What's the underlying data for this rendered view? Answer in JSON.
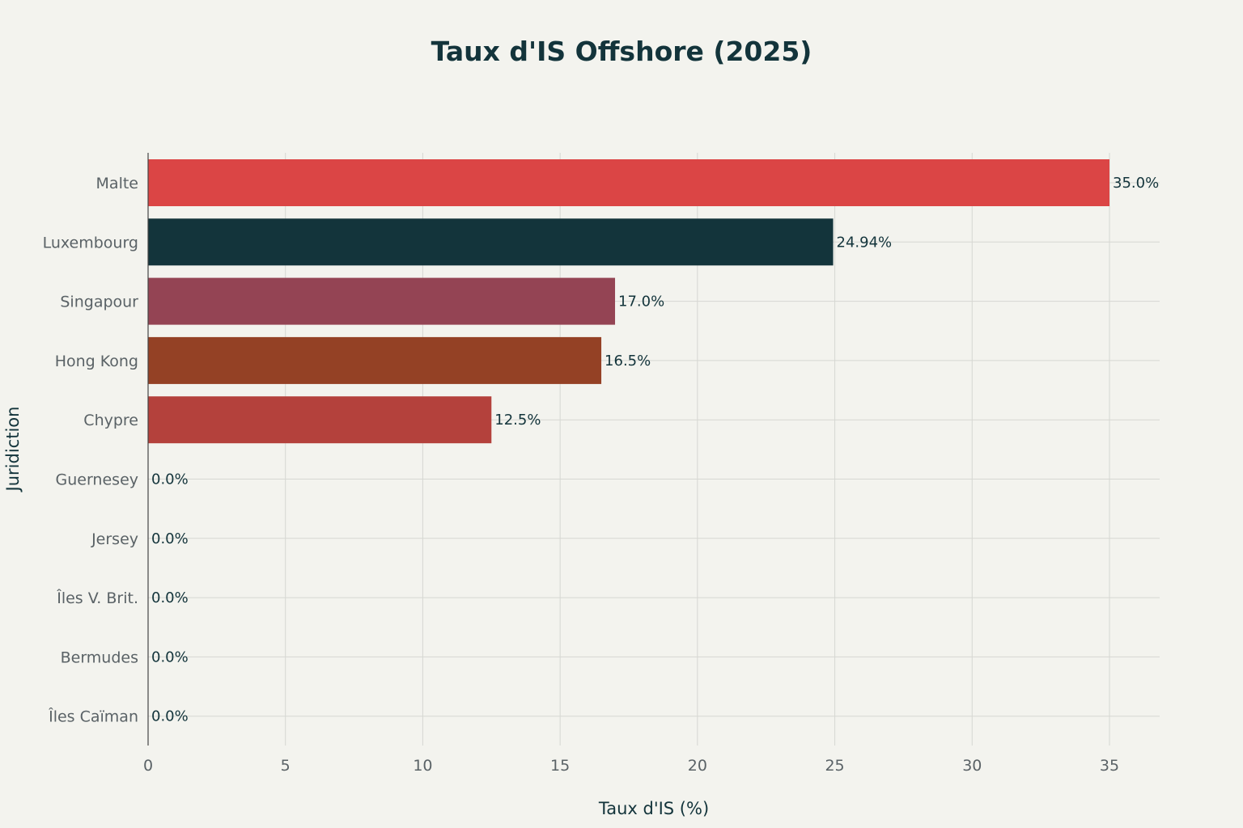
{
  "chart_data": {
    "type": "bar",
    "orientation": "horizontal",
    "title": "Taux d'IS Offshore (2025)",
    "xlabel": "Taux d'IS (%)",
    "ylabel": "Juridiction",
    "xlim": [
      0,
      36.8
    ],
    "xticks": [
      0,
      5,
      10,
      15,
      20,
      25,
      30,
      35
    ],
    "grid": true,
    "categories": [
      "Malte",
      "Luxembourg",
      "Singapour",
      "Hong Kong",
      "Chypre",
      "Guernesey",
      "Jersey",
      "Îles V. Brit.",
      "Bermudes",
      "Îles Caïman"
    ],
    "values": [
      35.0,
      24.94,
      17.0,
      16.5,
      12.5,
      0.0,
      0.0,
      0.0,
      0.0,
      0.0
    ],
    "data_labels": [
      "35.0%",
      "24.94%",
      "17.0%",
      "16.5%",
      "12.5%",
      "0.0%",
      "0.0%",
      "0.0%",
      "0.0%",
      "0.0%"
    ],
    "colors": [
      "#db4545",
      "#13343b",
      "#944454",
      "#944125",
      "#b4413c",
      "#1fb8cd",
      "#ffc185",
      "#5d878f",
      "#d2ba4c",
      "#964325"
    ]
  }
}
